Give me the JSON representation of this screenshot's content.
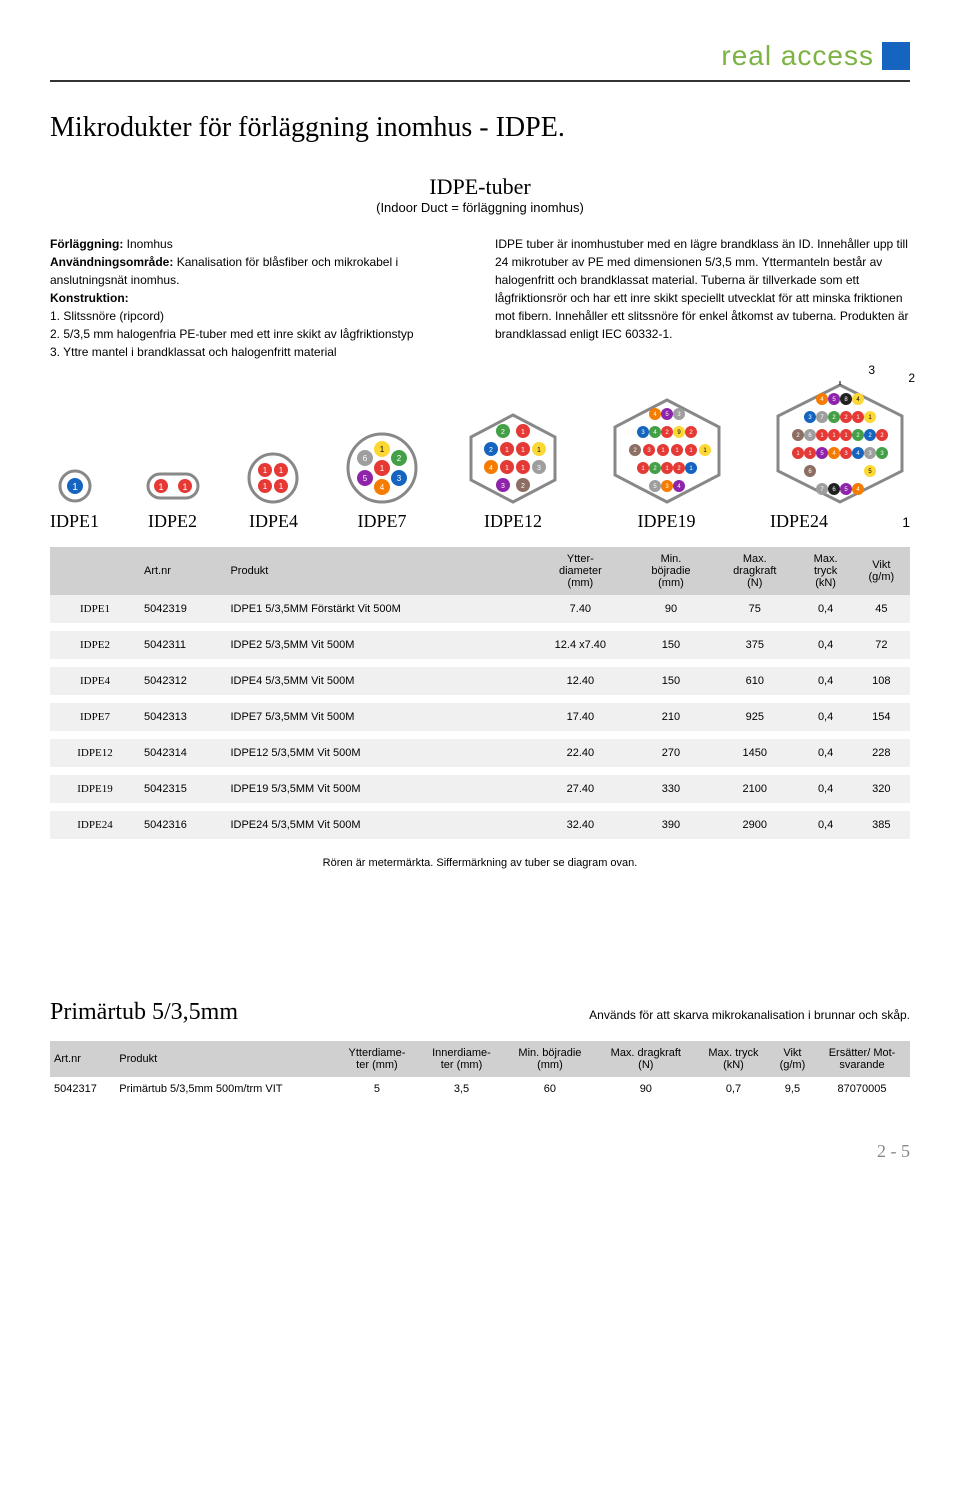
{
  "logo_text": "real access",
  "title": "Mikrodukter för förläggning inomhus - IDPE.",
  "idpe_heading": "IDPE-tuber",
  "idpe_sub": "(Indoor Duct = förläggning inomhus)",
  "left_col": {
    "l1_label": "Förläggning:",
    "l1_val": "Inomhus",
    "l2_label": "Användningsområde:",
    "l2_val": "Kanalisation för blåsfiber och mikrokabel i anslutningsnät inomhus.",
    "l3_label": "Konstruktion:",
    "k1": "1. Slitssnöre (ripcord)",
    "k2": "2. 5/3,5 mm halogenfria PE-tuber med ett inre skikt av lågfriktionstyp",
    "k3": "3. Yttre mantel i brandklassat och halogenfritt material"
  },
  "right_col": "IDPE tuber är inomhustuber med en lägre brandklass än ID. Innehåller upp till 24 mikrotuber av PE med dimensionen 5/3,5 mm. Yttermanteln består av halogenfritt och brandklassat material. Tuberna är tillverkade som ett lågfriktionsrör och har ett inre skikt speciellt utvecklat för att minska friktionen mot fibern. Innehåller ett slitssnöre för enkel åtkomst av tuberna. Produkten är brandklassad enligt IEC 60332-1.",
  "annot_3": "3",
  "annot_2": "2",
  "annot_1": "1",
  "diagram_labels": [
    "IDPE1",
    "IDPE2",
    "IDPE4",
    "IDPE7",
    "IDPE12",
    "IDPE19",
    "IDPE24"
  ],
  "diagram_colors": {
    "outer": "#888888",
    "inner": "#ffffff",
    "tube_ring": "#aaaaaa",
    "tube_outer": "#ffffff",
    "c_blue": "#1565c0",
    "c_orange": "#f57c00",
    "c_green": "#43a047",
    "c_brown": "#8d6e63",
    "c_gray": "#9e9e9e",
    "c_red": "#e53935",
    "c_black": "#212121",
    "c_yellow": "#fdd835",
    "c_purple": "#8e24aa",
    "c_pink": "#ec407a",
    "c_cyan": "#26c6da"
  },
  "table": {
    "headers": [
      "",
      "Art.nr",
      "Produkt",
      "Ytter-\ndiameter\n(mm)",
      "Min.\nböjradie\n(mm)",
      "Max.\ndragkraft\n(N)",
      "Max.\ntryck\n(kN)",
      "Vikt\n(g/m)"
    ],
    "rows": [
      {
        "label": "IDPE1",
        "art": "5042319",
        "prod": "IDPE1 5/3,5MM Förstärkt Vit 500M",
        "ytter": "7.40",
        "boj": "90",
        "drag": "75",
        "tryck": "0,4",
        "vikt": "45"
      },
      {
        "label": "IDPE2",
        "art": "5042311",
        "prod": "IDPE2 5/3,5MM Vit 500M",
        "ytter": "12.4 x7.40",
        "boj": "150",
        "drag": "375",
        "tryck": "0,4",
        "vikt": "72"
      },
      {
        "label": "IDPE4",
        "art": "5042312",
        "prod": "IDPE4 5/3,5MM Vit 500M",
        "ytter": "12.40",
        "boj": "150",
        "drag": "610",
        "tryck": "0,4",
        "vikt": "108"
      },
      {
        "label": "IDPE7",
        "art": "5042313",
        "prod": "IDPE7 5/3,5MM Vit 500M",
        "ytter": "17.40",
        "boj": "210",
        "drag": "925",
        "tryck": "0,4",
        "vikt": "154"
      },
      {
        "label": "IDPE12",
        "art": "5042314",
        "prod": "IDPE12 5/3,5MM Vit 500M",
        "ytter": "22.40",
        "boj": "270",
        "drag": "1450",
        "tryck": "0,4",
        "vikt": "228"
      },
      {
        "label": "IDPE19",
        "art": "5042315",
        "prod": "IDPE19 5/3,5MM Vit 500M",
        "ytter": "27.40",
        "boj": "330",
        "drag": "2100",
        "tryck": "0,4",
        "vikt": "320"
      },
      {
        "label": "IDPE24",
        "art": "5042316",
        "prod": "IDPE24 5/3,5MM Vit 500M",
        "ytter": "32.40",
        "boj": "390",
        "drag": "2900",
        "tryck": "0,4",
        "vikt": "385"
      }
    ],
    "note": "Rören är metermärkta. Siffermärkning av tuber se diagram ovan."
  },
  "primar": {
    "title": "Primärtub 5/3,5mm",
    "desc": "Används för att skarva mikrokanalisation i brunnar och skåp.",
    "headers": [
      "Art.nr",
      "Produkt",
      "Ytterdiame-\nter (mm)",
      "Innerdiame-\nter (mm)",
      "Min. böjradie\n(mm)",
      "Max. dragkraft\n(N)",
      "Max. tryck\n(kN)",
      "Vikt\n(g/m)",
      "Ersätter/ Mot-\nsvarande"
    ],
    "row": [
      "5042317",
      "Primärtub 5/3,5mm 500m/trm VIT",
      "5",
      "3,5",
      "60",
      "90",
      "0,7",
      "9,5",
      "87070005"
    ]
  },
  "page_num": "2 - 5"
}
